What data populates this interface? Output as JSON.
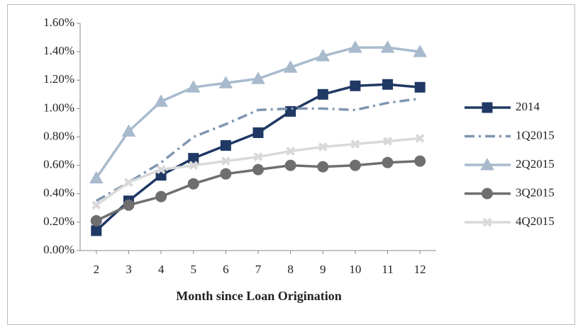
{
  "chart_data": {
    "type": "line",
    "xlabel": "Month since Loan Origination",
    "x": [
      2,
      3,
      4,
      5,
      6,
      7,
      8,
      9,
      10,
      11,
      12
    ],
    "xlim": [
      1.5,
      12.5
    ],
    "xticks": [
      2,
      3,
      4,
      5,
      6,
      7,
      8,
      9,
      10,
      11,
      12
    ],
    "ylim": [
      0,
      1.6
    ],
    "yticks": [
      {
        "value": 0,
        "label": "0.00%"
      },
      {
        "value": 0.2,
        "label": "0.20%"
      },
      {
        "value": 0.4,
        "label": "0.40%"
      },
      {
        "value": 0.6,
        "label": "0.60%"
      },
      {
        "value": 0.8,
        "label": "0.80%"
      },
      {
        "value": 1.0,
        "label": "1.00%"
      },
      {
        "value": 1.2,
        "label": "1.20%"
      },
      {
        "value": 1.4,
        "label": "1.40%"
      },
      {
        "value": 1.6,
        "label": "1.60%"
      }
    ],
    "legend": "right",
    "series": [
      {
        "name": "2014",
        "color": "#1f3864",
        "marker": "square",
        "values": [
          0.14,
          0.35,
          0.53,
          0.65,
          0.74,
          0.83,
          0.98,
          1.1,
          1.16,
          1.17,
          1.15
        ]
      },
      {
        "name": "1Q2015",
        "color": "#7f96b0",
        "dash": "dashdot",
        "values": [
          0.35,
          0.48,
          0.62,
          0.8,
          0.89,
          0.99,
          1.0,
          1.0,
          0.99,
          1.04,
          1.07
        ]
      },
      {
        "name": "2Q2015",
        "color": "#a9bacd",
        "marker": "triangle",
        "values": [
          0.51,
          0.84,
          1.05,
          1.15,
          1.18,
          1.21,
          1.29,
          1.37,
          1.43,
          1.43,
          1.4
        ]
      },
      {
        "name": "3Q2015",
        "color": "#6e6e6e",
        "marker": "circle",
        "values": [
          0.21,
          0.32,
          0.38,
          0.47,
          0.54,
          0.57,
          0.6,
          0.59,
          0.6,
          0.62,
          0.63
        ]
      },
      {
        "name": "4Q2015",
        "color": "#d9d9d9",
        "marker": "cross",
        "values": [
          0.32,
          0.48,
          0.57,
          0.6,
          0.63,
          0.66,
          0.7,
          0.73,
          0.75,
          0.77,
          0.79
        ]
      }
    ]
  }
}
